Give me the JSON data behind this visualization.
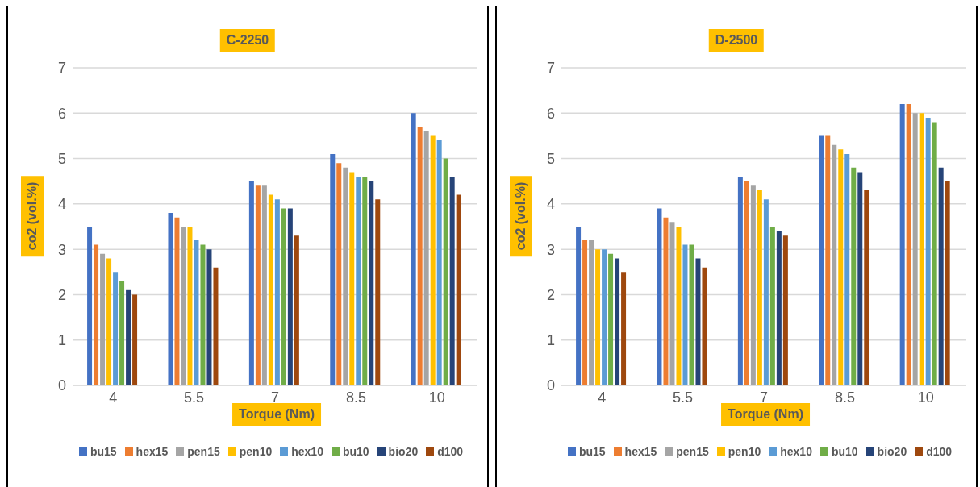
{
  "chart_data": [
    {
      "type": "bar",
      "title": "C-2250",
      "xlabel": "Torque (Nm)",
      "ylabel": "co2 (vol.%)",
      "categories": [
        "4",
        "5.5",
        "7",
        "8.5",
        "10"
      ],
      "ylim": [
        0,
        7
      ],
      "yticks": [
        0,
        1,
        2,
        3,
        4,
        5,
        6,
        7
      ],
      "grid": "y",
      "legend": "bottom",
      "series": [
        {
          "name": "bu15",
          "color": "#4472c4",
          "values": [
            3.5,
            3.8,
            4.5,
            5.1,
            6.0
          ]
        },
        {
          "name": "hex15",
          "color": "#ed7d31",
          "values": [
            3.1,
            3.7,
            4.4,
            4.9,
            5.7
          ]
        },
        {
          "name": "pen15",
          "color": "#a5a5a5",
          "values": [
            2.9,
            3.5,
            4.4,
            4.8,
            5.6
          ]
        },
        {
          "name": "pen10",
          "color": "#ffc000",
          "values": [
            2.8,
            3.5,
            4.2,
            4.7,
            5.5
          ]
        },
        {
          "name": "hex10",
          "color": "#5b9bd5",
          "values": [
            2.5,
            3.2,
            4.1,
            4.6,
            5.4
          ]
        },
        {
          "name": "bu10",
          "color": "#70ad47",
          "values": [
            2.3,
            3.1,
            3.9,
            4.6,
            5.0
          ]
        },
        {
          "name": "bio20",
          "color": "#264478",
          "values": [
            2.1,
            3.0,
            3.9,
            4.5,
            4.6
          ]
        },
        {
          "name": "d100",
          "color": "#9e480e",
          "values": [
            2.0,
            2.6,
            3.3,
            4.1,
            4.2
          ]
        }
      ]
    },
    {
      "type": "bar",
      "title": "D-2500",
      "xlabel": "Torque (Nm)",
      "ylabel": "co2 (vol.%)",
      "categories": [
        "4",
        "5.5",
        "7",
        "8.5",
        "10"
      ],
      "ylim": [
        0,
        7
      ],
      "yticks": [
        0,
        1,
        2,
        3,
        4,
        5,
        6,
        7
      ],
      "grid": "y",
      "legend": "bottom",
      "series": [
        {
          "name": "bu15",
          "color": "#4472c4",
          "values": [
            3.5,
            3.9,
            4.6,
            5.5,
            6.2
          ]
        },
        {
          "name": "hex15",
          "color": "#ed7d31",
          "values": [
            3.2,
            3.7,
            4.5,
            5.5,
            6.2
          ]
        },
        {
          "name": "pen15",
          "color": "#a5a5a5",
          "values": [
            3.2,
            3.6,
            4.4,
            5.3,
            6.0
          ]
        },
        {
          "name": "pen10",
          "color": "#ffc000",
          "values": [
            3.0,
            3.5,
            4.3,
            5.2,
            6.0
          ]
        },
        {
          "name": "hex10",
          "color": "#5b9bd5",
          "values": [
            3.0,
            3.1,
            4.1,
            5.1,
            5.9
          ]
        },
        {
          "name": "bu10",
          "color": "#70ad47",
          "values": [
            2.9,
            3.1,
            3.5,
            4.8,
            5.8
          ]
        },
        {
          "name": "bio20",
          "color": "#264478",
          "values": [
            2.8,
            2.8,
            3.4,
            4.7,
            4.8
          ]
        },
        {
          "name": "d100",
          "color": "#9e480e",
          "values": [
            2.5,
            2.6,
            3.3,
            4.3,
            4.5
          ]
        }
      ]
    }
  ]
}
